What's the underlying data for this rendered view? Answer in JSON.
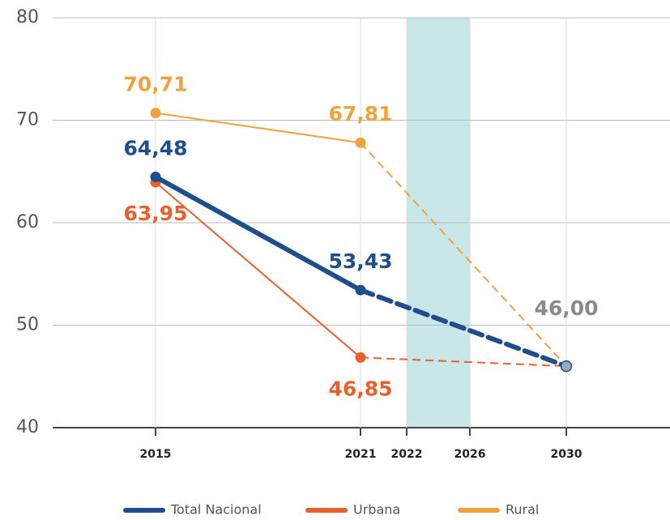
{
  "chart_data": {
    "type": "line",
    "x": [
      2015,
      2021,
      2030
    ],
    "series": [
      {
        "name": "Total Nacional",
        "color": "#1f4e8c",
        "emphasis": true,
        "label_position": "above",
        "values": [
          64.48,
          53.43,
          46.0
        ],
        "value_labels": [
          "64,48",
          "53,43",
          "46,00"
        ]
      },
      {
        "name": "Urbana",
        "color": "#e8612c",
        "label_position": "below",
        "values": [
          63.95,
          46.85,
          46.0
        ],
        "value_labels": [
          "63,95",
          "46,85",
          null
        ]
      },
      {
        "name": "Rural",
        "color": "#f2a23c",
        "label_position": "above",
        "values": [
          70.71,
          67.81,
          46.0
        ],
        "value_labels": [
          "70,71",
          "67,81",
          null
        ]
      }
    ],
    "target_color": "#8a8a8a",
    "projected_from": 2021,
    "shaded_span": [
      2022,
      2026
    ],
    "shaded_color": "#c9e6e8",
    "xticks": [
      2015,
      2021,
      2022,
      2026,
      2030
    ],
    "ylim": [
      40,
      80
    ],
    "yticks": [
      40,
      50,
      60,
      70,
      80
    ],
    "grid": true,
    "legend": "bottom"
  }
}
